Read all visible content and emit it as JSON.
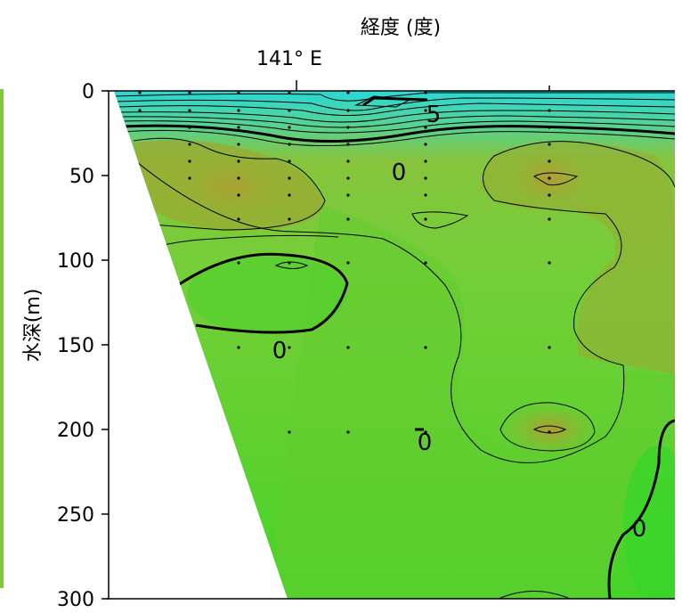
{
  "chart_data": {
    "type": "contour",
    "title": "",
    "xlabel": "経度 (度)",
    "ylabel": "水深(m)",
    "x_ticks": [
      {
        "label": "141° E"
      }
    ],
    "y_ticks": [
      0,
      50,
      100,
      150,
      200,
      250,
      300
    ],
    "ylim": [
      0,
      300
    ],
    "y_inverted": true,
    "contour_labels": [
      "0",
      "0",
      "0",
      "0",
      "5"
    ],
    "colors": {
      "surface_cyan": "#29e6e6",
      "mid_green": "#66cc33",
      "warm_olive": "#a0a030",
      "deep_green": "#3fd32a",
      "contour_line": "#000000"
    }
  }
}
